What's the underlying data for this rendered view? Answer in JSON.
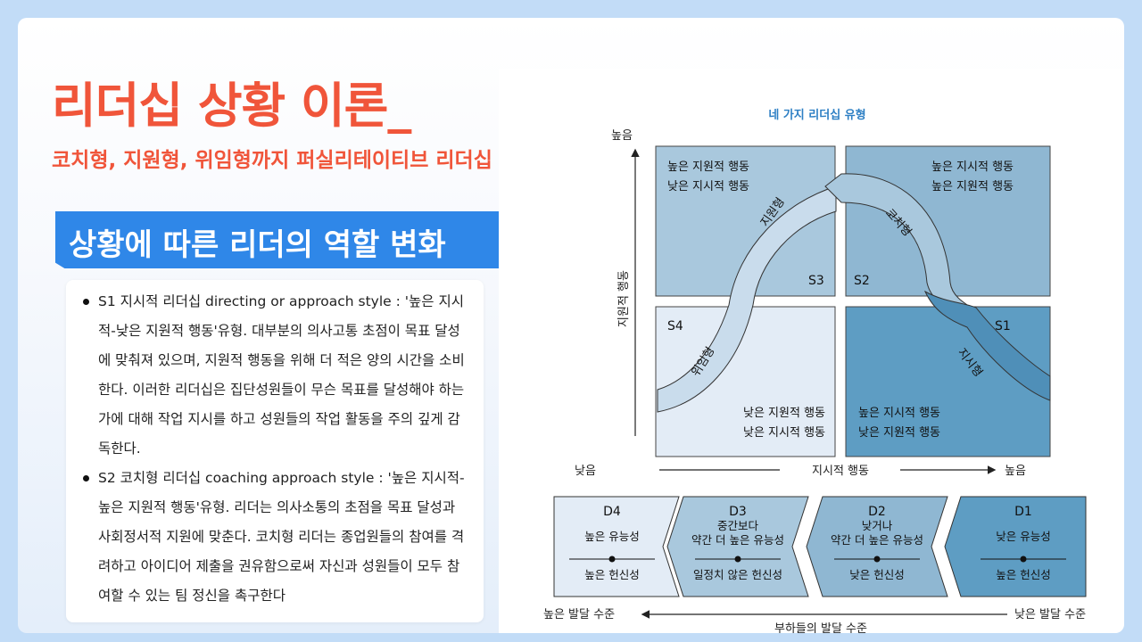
{
  "header": {
    "title": "리더십 상황 이론_",
    "subtitle": "코치형, 지원형, 위임형까지 퍼실리테이티브 리더십"
  },
  "section": {
    "heading": "상황에 따른 리더의 역할 변화"
  },
  "bullets": [
    "S1 지시적 리더십 directing or approach style : '높은 지시적-낮은 지원적 행동'유형. 대부분의 의사고통 초점이 목표 달성에 맞춰져 있으며, 지원적 행동을 위해 더 적은 양의 시간을 소비한다. 이러한 리더십은 집단성원들이 무슨 목표를 달성해야 하는가에 대해 작업 지시를 하고 성원들의 작업 활동을 주의 깊게 감독한다.",
    "S2 코치형 리더십 coaching approach style : '높은 지시적-높은 지원적 행동'유형. 리더는 의사소통의 초점을 목표 달성과 사회정서적 지원에 맞춘다. 코치형 리더는 종업원들의 참여를 격려하고 아이디어 제출을 권유함으로써 자신과 성원들이 모두 참여할 수 있는 팀 정신을 촉구한다"
  ],
  "diagram": {
    "title": "네 가지 리더십 유형",
    "y_axis": {
      "label": "지원적 행동",
      "high": "높음"
    },
    "x_axis": {
      "label": "지시적 행동",
      "low": "낮음",
      "high": "높음"
    },
    "quadrants": {
      "s3": {
        "id": "S3",
        "line1": "높은 지원적 행동",
        "line2": "낮은 지시적 행동",
        "color": "#a9c8dd"
      },
      "s2": {
        "id": "S2",
        "line1": "높은 지시적 행동",
        "line2": "높은 지원적 행동",
        "color": "#8fb7d2"
      },
      "s4": {
        "id": "S4",
        "line1": "낮은 지원적 행동",
        "line2": "낮은 지시적 행동",
        "color": "#e3ecf6"
      },
      "s1": {
        "id": "S1",
        "line1": "높은 지시적 행동",
        "line2": "낮은 지원적 행동",
        "color": "#5e9dc3"
      }
    },
    "arc_labels": {
      "supporting": "지원형",
      "coaching": "코치형",
      "delegating": "위임형",
      "directing": "지시형"
    },
    "development": [
      {
        "id": "D4",
        "top": [
          "높은 유능성"
        ],
        "bottom": "높은 헌신성",
        "color": "#e3ecf6"
      },
      {
        "id": "D3",
        "top": [
          "중간보다",
          "약간 더 높은 유능성"
        ],
        "bottom": "일정치 않은 헌신성",
        "color": "#a9c8dd"
      },
      {
        "id": "D2",
        "top": [
          "낮거나",
          "약간 더 높은 유능성"
        ],
        "bottom": "낮은 헌신성",
        "color": "#8fb7d2"
      },
      {
        "id": "D1",
        "top": [
          "낮은 유능성"
        ],
        "bottom": "높은 헌신성",
        "color": "#5e9dc3"
      }
    ],
    "dev_axis": {
      "left": "높은 발달 수준",
      "right": "낮은 발달 수준",
      "center": "부하들의 발달 수준"
    }
  }
}
